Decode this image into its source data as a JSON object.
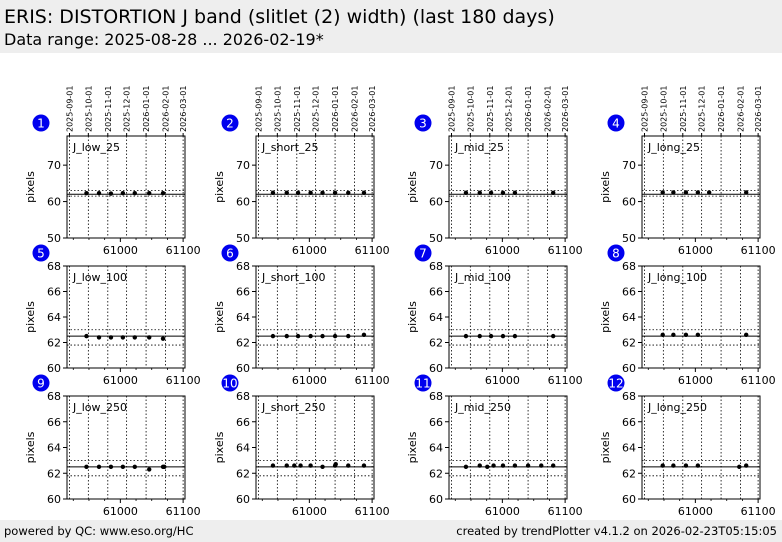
{
  "title": "ERIS: DISTORTION J band (slitlet (2) width) (last 180 days)",
  "subtitle": "Data range: 2025-08-28 ... 2026-02-19*",
  "footer": {
    "left": "powered by QC: www.eso.org/HC",
    "right": "created by trendPlotter v4.1.2 on 2026-02-23T05:15:05"
  },
  "colors": {
    "badge": "#0000ee",
    "header_bg": "#eeeeee",
    "points": "#000000"
  },
  "chart_data": [
    {
      "type": "scatter",
      "badge": "1",
      "label": "J_low_25",
      "ylabel": "pixels",
      "ylim": [
        50,
        78
      ],
      "yticks": [
        50,
        60,
        70
      ],
      "ref_lines": {
        "solid": 62.0,
        "dotted": [
          61.5,
          63.0
        ]
      },
      "x": [
        60946,
        60966,
        60985,
        61004,
        61023,
        61046,
        61068
      ],
      "y": [
        62.3,
        62.3,
        62.2,
        62.3,
        62.3,
        62.3,
        62.3
      ]
    },
    {
      "type": "scatter",
      "badge": "2",
      "label": "J_short_25",
      "ylabel": "pixels",
      "ylim": [
        50,
        78
      ],
      "yticks": [
        50,
        60,
        70
      ],
      "ref_lines": {
        "solid": 62.0,
        "dotted": [
          61.5,
          63.0
        ]
      },
      "x": [
        60942,
        60964,
        60982,
        61002,
        61021,
        61041,
        61062,
        61087
      ],
      "y": [
        62.4,
        62.4,
        62.4,
        62.4,
        62.4,
        62.4,
        62.4,
        62.4
      ]
    },
    {
      "type": "scatter",
      "badge": "3",
      "label": "J_mid_25",
      "ylabel": "pixels",
      "ylim": [
        50,
        78
      ],
      "yticks": [
        50,
        60,
        70
      ],
      "ref_lines": {
        "solid": 62.0,
        "dotted": [
          61.5,
          63.0
        ]
      },
      "x": [
        60942,
        60964,
        60982,
        61001,
        61020,
        61081
      ],
      "y": [
        62.4,
        62.4,
        62.4,
        62.4,
        62.4,
        62.4
      ]
    },
    {
      "type": "scatter",
      "badge": "4",
      "label": "J_long_25",
      "ylabel": "pixels",
      "ylim": [
        50,
        78
      ],
      "yticks": [
        50,
        60,
        70
      ],
      "ref_lines": {
        "solid": 62.0,
        "dotted": [
          61.5,
          63.0
        ]
      },
      "x": [
        60948,
        60965,
        60985,
        61004,
        61022,
        61081
      ],
      "y": [
        62.5,
        62.5,
        62.5,
        62.5,
        62.5,
        62.5
      ]
    },
    {
      "type": "scatter",
      "badge": "5",
      "label": "J_low_100",
      "ylabel": "pixels",
      "ylim": [
        60,
        68
      ],
      "yticks": [
        60,
        62,
        64,
        66,
        68
      ],
      "ref_lines": {
        "solid": 62.5,
        "dotted": [
          61.8,
          63.0
        ]
      },
      "x": [
        60946,
        60966,
        60985,
        61004,
        61023,
        61046,
        61068
      ],
      "y": [
        62.5,
        62.4,
        62.4,
        62.4,
        62.4,
        62.4,
        62.3
      ]
    },
    {
      "type": "scatter",
      "badge": "6",
      "label": "J_short_100",
      "ylabel": "pixels",
      "ylim": [
        60,
        68
      ],
      "yticks": [
        60,
        62,
        64,
        66,
        68
      ],
      "ref_lines": {
        "solid": 62.5,
        "dotted": [
          61.8,
          63.0
        ]
      },
      "x": [
        60942,
        60964,
        60982,
        61002,
        61021,
        61041,
        61062,
        61087
      ],
      "y": [
        62.5,
        62.5,
        62.5,
        62.5,
        62.5,
        62.5,
        62.5,
        62.6
      ]
    },
    {
      "type": "scatter",
      "badge": "7",
      "label": "J_mid_100",
      "ylabel": "pixels",
      "ylim": [
        60,
        68
      ],
      "yticks": [
        60,
        62,
        64,
        66,
        68
      ],
      "ref_lines": {
        "solid": 62.5,
        "dotted": [
          61.8,
          63.0
        ]
      },
      "x": [
        60942,
        60964,
        60982,
        61001,
        61020,
        61081
      ],
      "y": [
        62.5,
        62.5,
        62.5,
        62.5,
        62.5,
        62.5
      ]
    },
    {
      "type": "scatter",
      "badge": "8",
      "label": "J_long_100",
      "ylabel": "pixels",
      "ylim": [
        60,
        68
      ],
      "yticks": [
        60,
        62,
        64,
        66,
        68
      ],
      "ref_lines": {
        "solid": 62.5,
        "dotted": [
          61.8,
          63.0
        ]
      },
      "x": [
        60948,
        60965,
        60985,
        61004,
        61081
      ],
      "y": [
        62.6,
        62.6,
        62.6,
        62.6,
        62.6
      ]
    },
    {
      "type": "scatter",
      "badge": "9",
      "label": "J_low_250",
      "ylabel": "pixels",
      "ylim": [
        60,
        68
      ],
      "yticks": [
        60,
        62,
        64,
        66,
        68
      ],
      "ref_lines": {
        "solid": 62.5,
        "dotted": [
          61.8,
          63.0
        ]
      },
      "x": [
        60946,
        60966,
        60985,
        61004,
        61023,
        61046,
        61068,
        61070
      ],
      "y": [
        62.5,
        62.5,
        62.5,
        62.5,
        62.5,
        62.3,
        62.5,
        62.5
      ]
    },
    {
      "type": "scatter",
      "badge": "10",
      "label": "J_short_250",
      "ylabel": "pixels",
      "ylim": [
        60,
        68
      ],
      "yticks": [
        60,
        62,
        64,
        66,
        68
      ],
      "ref_lines": {
        "solid": 62.5,
        "dotted": [
          61.8,
          63.0
        ]
      },
      "x": [
        60942,
        60964,
        60976,
        60986,
        61002,
        61021,
        61041,
        61042,
        61062,
        61087
      ],
      "y": [
        62.6,
        62.6,
        62.6,
        62.6,
        62.6,
        62.5,
        62.6,
        62.7,
        62.6,
        62.6
      ]
    },
    {
      "type": "scatter",
      "badge": "11",
      "label": "J_mid_250",
      "ylabel": "pixels",
      "ylim": [
        60,
        68
      ],
      "yticks": [
        60,
        62,
        64,
        66,
        68
      ],
      "ref_lines": {
        "solid": 62.5,
        "dotted": [
          61.8,
          63.0
        ]
      },
      "x": [
        60942,
        60964,
        60976,
        60986,
        61001,
        61020,
        61041,
        61062,
        61081
      ],
      "y": [
        62.5,
        62.6,
        62.5,
        62.6,
        62.6,
        62.6,
        62.6,
        62.6,
        62.6
      ]
    },
    {
      "type": "scatter",
      "badge": "12",
      "label": "J_long_250",
      "ylabel": "pixels",
      "ylim": [
        60,
        68
      ],
      "yticks": [
        60,
        62,
        64,
        66,
        68
      ],
      "ref_lines": {
        "solid": 62.5,
        "dotted": [
          61.8,
          63.0
        ]
      },
      "x": [
        60948,
        60965,
        60985,
        61004,
        61070,
        61081
      ],
      "y": [
        62.6,
        62.6,
        62.6,
        62.6,
        62.5,
        62.6
      ]
    }
  ],
  "xaxis": {
    "xlim": [
      60915,
      61103
    ],
    "ticks": [
      61000,
      61100
    ],
    "minor_ticks": [
      60925,
      60950,
      60975,
      61025,
      61050,
      61075
    ],
    "date_labels": [
      "2025-09-01",
      "2025-10-01",
      "2025-11-01",
      "2025-12-01",
      "2026-01-01",
      "2026-02-01",
      "2026-03-01"
    ],
    "date_mjd": [
      60919,
      60949,
      60980,
      61010,
      61041,
      61072,
      61100
    ]
  }
}
